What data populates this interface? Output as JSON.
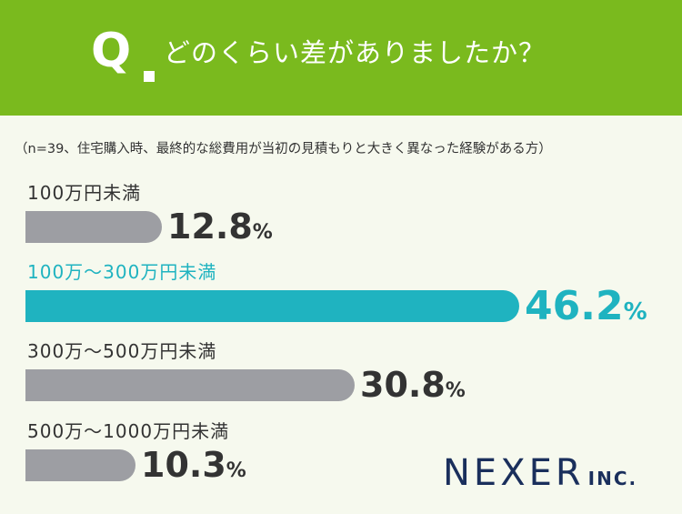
{
  "header": {
    "q_letter": "Q",
    "question": "どのくらい差がありましたか？"
  },
  "note": "（n=39、住宅購入時、最終的な総費用が当初の見積もりと大きく異なった経験がある方）",
  "chart_data": {
    "type": "bar",
    "orientation": "horizontal",
    "categories": [
      "100万円未満",
      "100万～300万円未満",
      "300万～500万円未満",
      "500万～1000万円未満"
    ],
    "values": [
      12.8,
      46.2,
      30.8,
      10.3
    ],
    "value_labels": [
      "12.8",
      "46.2",
      "30.8",
      "10.3"
    ],
    "unit": "%",
    "highlight_index": 1,
    "colors": {
      "default": "#9d9ea3",
      "highlight": "#1fb3c0"
    },
    "xlim": [
      0,
      50
    ]
  },
  "logo": {
    "main": "NEXER",
    "sub": "INC."
  },
  "colors": {
    "header_bg": "#7aba1e",
    "page_bg": "#f6f9ee",
    "text": "#333333",
    "logo": "#1a2f5c"
  }
}
